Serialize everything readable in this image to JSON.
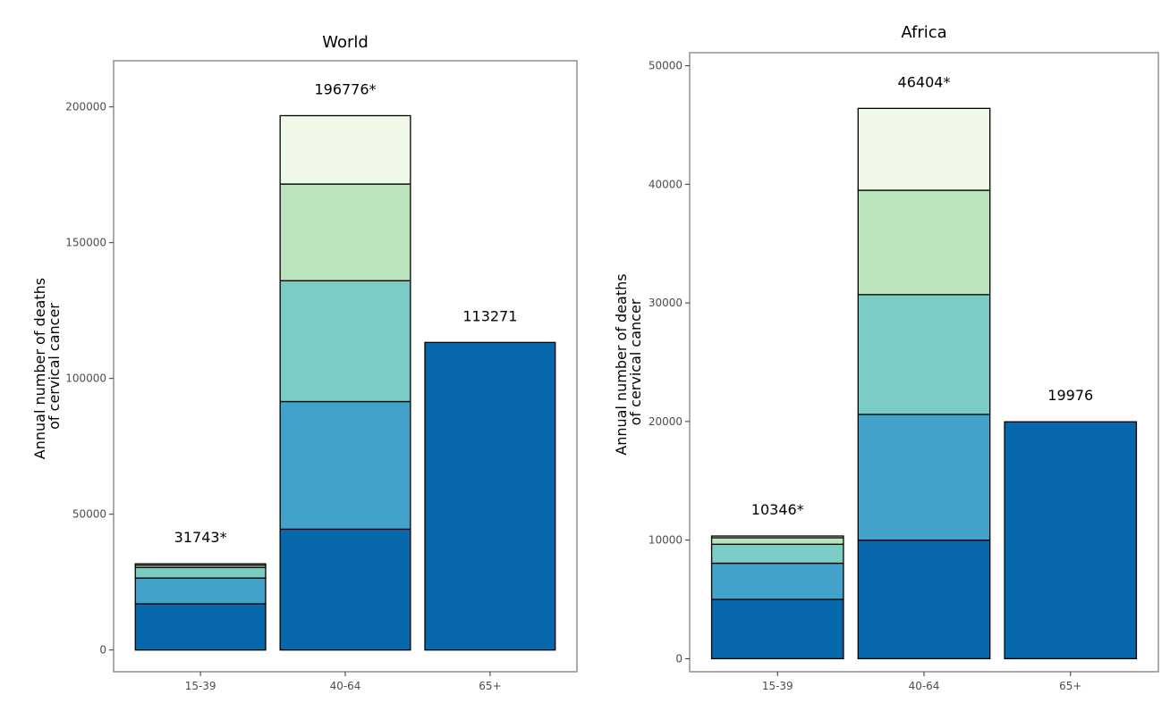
{
  "chart_data": [
    {
      "type": "bar",
      "stacked": true,
      "title": "World",
      "ylabel_lines": [
        "Annual number of deaths",
        "of cervical cancer"
      ],
      "categories": [
        "15-39",
        "40-64",
        "65+"
      ],
      "yticks": [
        0,
        50000,
        100000,
        150000,
        200000
      ],
      "ylim": [
        -8000,
        217000
      ],
      "segments": [
        [
          {
            "value": 17000,
            "color": "#0868ac"
          },
          {
            "value": 9500,
            "color": "#43a2ca"
          },
          {
            "value": 3900,
            "color": "#7bccc4"
          },
          {
            "value": 800,
            "color": "#bae4bc"
          },
          {
            "value": 543,
            "color": "#f0f9e8"
          }
        ],
        [
          {
            "value": 44500,
            "color": "#0868ac"
          },
          {
            "value": 47000,
            "color": "#43a2ca"
          },
          {
            "value": 44500,
            "color": "#7bccc4"
          },
          {
            "value": 35600,
            "color": "#bae4bc"
          },
          {
            "value": 25176,
            "color": "#f0f9e8"
          }
        ],
        [
          {
            "value": 113271,
            "color": "#0868ac"
          }
        ]
      ],
      "totals": [
        "31743*",
        "196776*",
        "113271"
      ],
      "grid": false
    },
    {
      "type": "bar",
      "stacked": true,
      "title": "Africa",
      "ylabel_lines": [
        "Annual number of deaths",
        "of cervical cancer"
      ],
      "categories": [
        "15-39",
        "40-64",
        "65+"
      ],
      "yticks": [
        0,
        10000,
        20000,
        30000,
        40000,
        50000
      ],
      "ylim": [
        -1100,
        51100
      ],
      "segments": [
        [
          {
            "value": 5000,
            "color": "#0868ac"
          },
          {
            "value": 3050,
            "color": "#43a2ca"
          },
          {
            "value": 1600,
            "color": "#7bccc4"
          },
          {
            "value": 550,
            "color": "#bae4bc"
          },
          {
            "value": 146,
            "color": "#f0f9e8"
          }
        ],
        [
          {
            "value": 10000,
            "color": "#0868ac"
          },
          {
            "value": 10600,
            "color": "#43a2ca"
          },
          {
            "value": 10100,
            "color": "#7bccc4"
          },
          {
            "value": 8800,
            "color": "#bae4bc"
          },
          {
            "value": 6904,
            "color": "#f0f9e8"
          }
        ],
        [
          {
            "value": 19976,
            "color": "#0868ac"
          }
        ]
      ],
      "totals": [
        "10346*",
        "46404*",
        "19976"
      ],
      "grid": false
    }
  ]
}
